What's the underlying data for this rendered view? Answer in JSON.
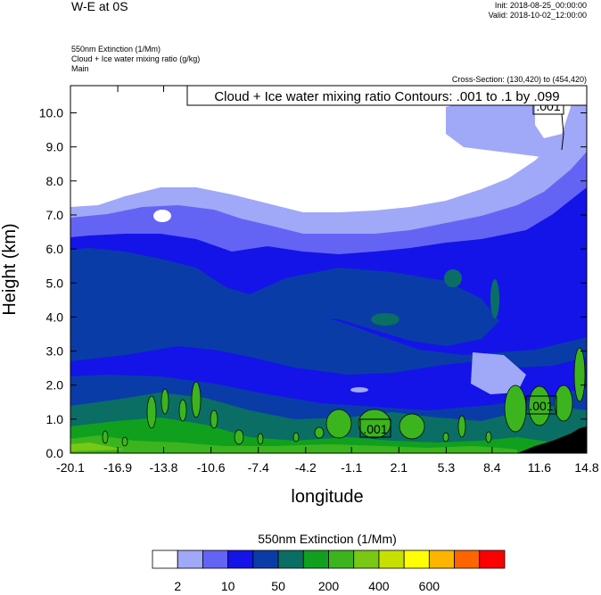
{
  "header": {
    "title": "W-E at 0S",
    "init": "Init: 2018-08-25_00:00:00",
    "valid": "Valid: 2018-10-02_12:00:00",
    "field1": "550nm Extinction   (1/Mm)",
    "field2": "Cloud + Ice water mixing ratio   (g/kg)",
    "field3": "Main",
    "cross_section": "Cross-Section: (130,420) to (454,420)"
  },
  "chart_data": {
    "type": "contour",
    "xlabel": "longitude",
    "ylabel": "Height (km)",
    "x_ticks": [
      "-20.1",
      "-16.9",
      "-13.8",
      "-10.6",
      "-7.4",
      "-4.2",
      "-1.1",
      "2.1",
      "5.3",
      "8.4",
      "11.6",
      "14.8"
    ],
    "y_ticks": [
      "0.0",
      "1.0",
      "2.0",
      "3.0",
      "4.0",
      "5.0",
      "6.0",
      "7.0",
      "8.0",
      "9.0",
      "10.0"
    ],
    "xlim": [
      -20.1,
      14.8
    ],
    "ylim": [
      0,
      10.8
    ],
    "contour_title": "Cloud + Ice water mixing ratio Contours: .001 to .1 by .099",
    "contour_labels": [
      ".001",
      ".001",
      ".001"
    ],
    "colorbar": {
      "title": "550nm Extinction  (1/Mm)",
      "labels": [
        "2",
        "10",
        "50",
        "200",
        "400",
        "600"
      ],
      "colors": [
        "#ffffff",
        "#a0a8f8",
        "#6464f4",
        "#1414e8",
        "#0a3ca8",
        "#0a6e64",
        "#10a01e",
        "#3cb41e",
        "#78c814",
        "#c8e000",
        "#ffff00",
        "#ffb400",
        "#ff6400",
        "#ff0000"
      ]
    }
  }
}
